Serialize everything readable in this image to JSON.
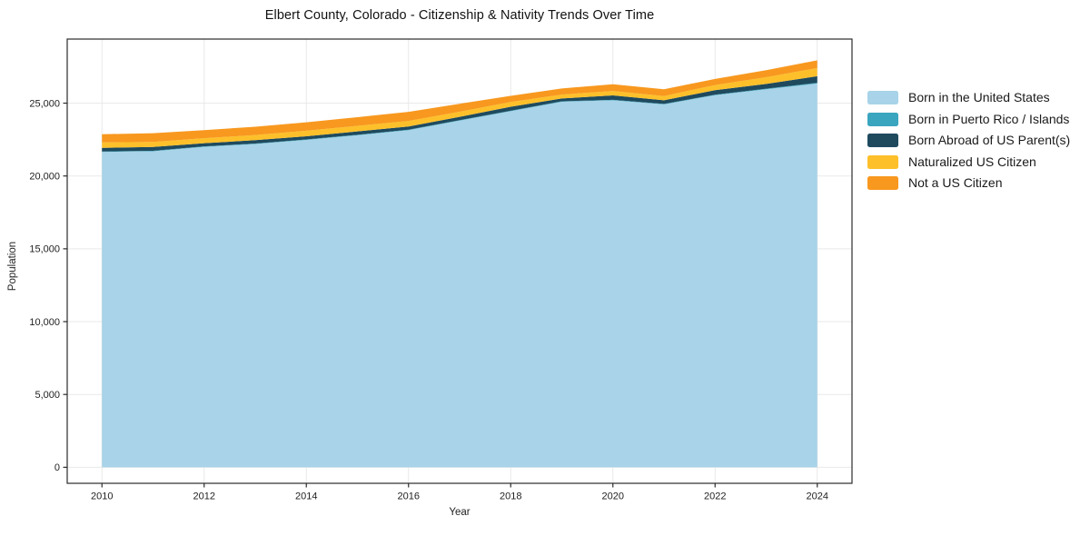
{
  "title": "Elbert County, Colorado - Citizenship & Nativity Trends Over Time",
  "legend": {
    "items": [
      {
        "label": "Born in the United States"
      },
      {
        "label": "Born in Puerto Rico / Islands"
      },
      {
        "label": "Born Abroad of US Parent(s)"
      },
      {
        "label": "Naturalized US Citizen"
      },
      {
        "label": "Not a US Citizen"
      }
    ]
  },
  "chart_data": {
    "type": "area",
    "stacked": true,
    "title": "Elbert County, Colorado - Citizenship & Nativity Trends Over Time",
    "xlabel": "Year",
    "ylabel": "Population",
    "x": [
      2010,
      2011,
      2012,
      2013,
      2014,
      2015,
      2016,
      2017,
      2018,
      2019,
      2020,
      2021,
      2022,
      2023,
      2024
    ],
    "series": [
      {
        "name": "Born in the United States",
        "color": "#a8d3e8",
        "values": [
          21650,
          21700,
          22000,
          22200,
          22480,
          22800,
          23150,
          23800,
          24450,
          25100,
          25200,
          24920,
          25550,
          25950,
          26350
        ]
      },
      {
        "name": "Born in Puerto Rico / Islands",
        "color": "#3aa5bf",
        "values": [
          30,
          30,
          30,
          30,
          30,
          30,
          30,
          30,
          30,
          30,
          30,
          30,
          30,
          40,
          50
        ]
      },
      {
        "name": "Born Abroad of US Parent(s)",
        "color": "#1f4a5e",
        "values": [
          250,
          260,
          220,
          230,
          220,
          230,
          220,
          230,
          270,
          190,
          300,
          250,
          310,
          330,
          450
        ]
      },
      {
        "name": "Naturalized US Citizen",
        "color": "#fdc02a",
        "values": [
          375,
          350,
          340,
          350,
          375,
          380,
          375,
          350,
          330,
          270,
          310,
          290,
          355,
          460,
          560
        ]
      },
      {
        "name": "Not a US Citizen",
        "color": "#f8981f",
        "values": [
          560,
          600,
          560,
          570,
          580,
          600,
          625,
          550,
          420,
          420,
          460,
          460,
          420,
          480,
          530
        ]
      }
    ],
    "x_ticks": [
      2010,
      2012,
      2014,
      2016,
      2018,
      2020,
      2022,
      2024
    ],
    "x_tick_labels": [
      "2010",
      "2012",
      "2014",
      "2016",
      "2018",
      "2020",
      "2022",
      "2024"
    ],
    "y_ticks": [
      0,
      5000,
      10000,
      15000,
      20000,
      25000
    ],
    "y_tick_labels": [
      "0",
      "5,000",
      "10,000",
      "15,000",
      "20,000",
      "25,000"
    ],
    "xlim": [
      2009.32,
      2024.68
    ],
    "ylim": [
      -1100,
      29400
    ],
    "grid": true,
    "grid_color": "#e9e9e9",
    "spine_color": "#2b2b2b",
    "tick_color": "#222222",
    "legend_position": "right"
  }
}
